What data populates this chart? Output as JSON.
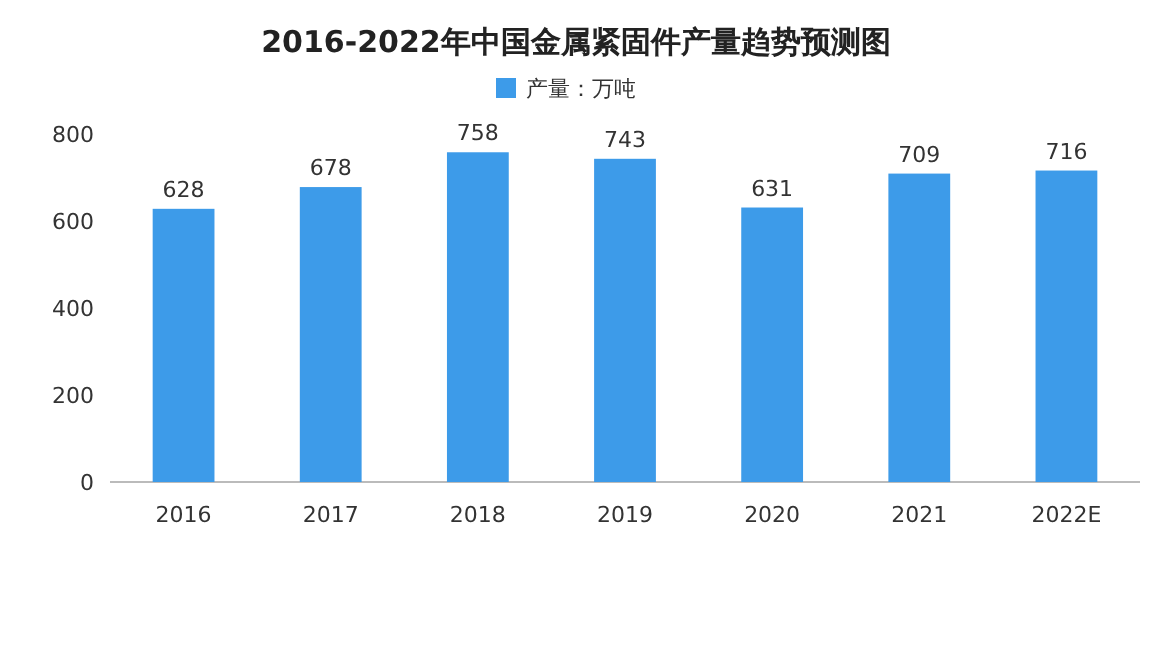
{
  "chart_data": {
    "type": "bar",
    "title": "2016-2022年中国金属紧固件产量趋势预测图",
    "categories": [
      "2016",
      "2017",
      "2018",
      "2019",
      "2020",
      "2021",
      "2022E"
    ],
    "series": [
      {
        "name": "产量：万吨",
        "color": "#3d9be9",
        "values": [
          628,
          678,
          758,
          743,
          631,
          709,
          716
        ]
      }
    ],
    "ylim": [
      0,
      800
    ],
    "yticks": [
      0,
      200,
      400,
      600,
      800
    ],
    "grid": false,
    "legend": "top",
    "data_labels": true
  }
}
